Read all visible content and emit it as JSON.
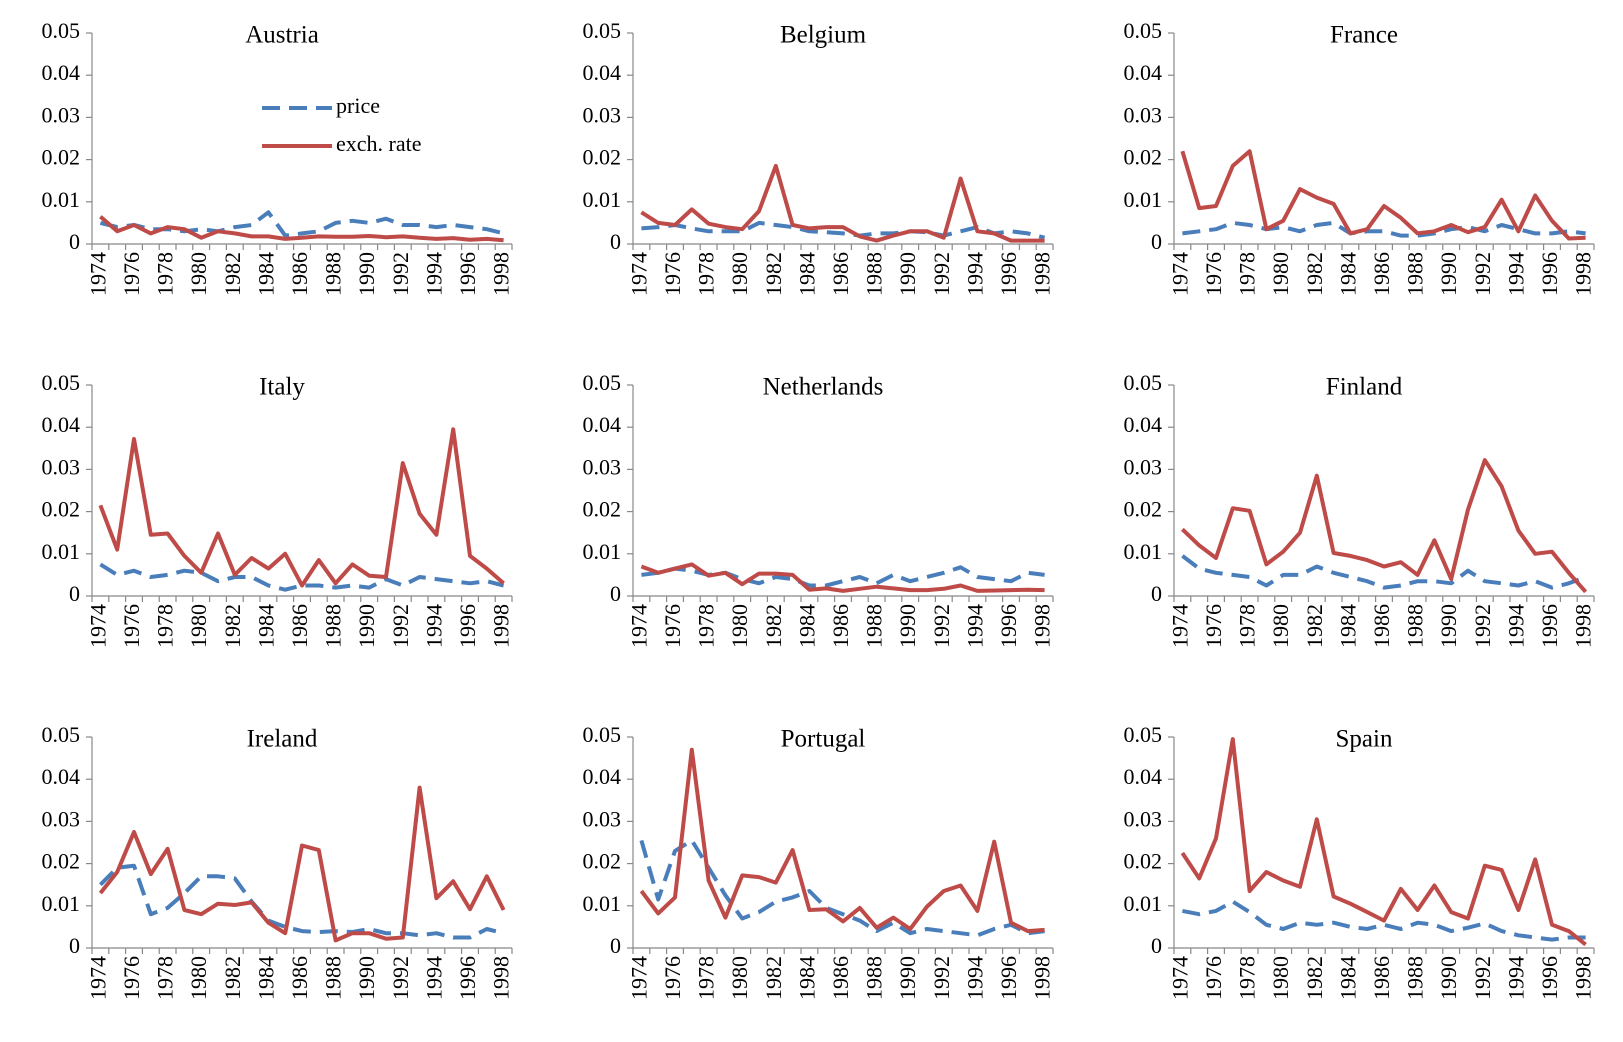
{
  "chart_data": [
    {
      "type": "line",
      "title": "Austria",
      "legend": "upper-center",
      "categories": [
        "1974",
        null,
        "1976",
        null,
        "1978",
        null,
        "1980",
        null,
        "1982",
        null,
        "1984",
        null,
        "1986",
        null,
        "1988",
        null,
        "1990",
        null,
        "1992",
        null,
        "1994",
        null,
        "1996",
        null,
        "1998"
      ],
      "ylim": [
        0,
        0.05
      ],
      "yticks": [
        0,
        0.01,
        0.02,
        0.03,
        0.04,
        0.05
      ],
      "series": [
        {
          "name": "price",
          "color": "#4a7ebb",
          "dash": "dashed",
          "values": [
            0.005,
            0.004,
            0.0045,
            0.0035,
            0.0035,
            0.003,
            0.0035,
            0.003,
            0.004,
            0.0045,
            0.0075,
            0.002,
            0.0025,
            0.003,
            0.005,
            0.0055,
            0.005,
            0.006,
            0.0045,
            0.0045,
            0.004,
            0.0045,
            0.004,
            0.0035,
            0.0025
          ]
        },
        {
          "name": "exch. rate",
          "color": "#be4b48",
          "dash": "solid",
          "values": [
            0.0065,
            0.003,
            0.0045,
            0.0025,
            0.004,
            0.0035,
            0.0015,
            0.003,
            0.0025,
            0.0018,
            0.0018,
            0.0012,
            0.0015,
            0.0018,
            0.0017,
            0.0017,
            0.0019,
            0.0016,
            0.0018,
            0.0015,
            0.0012,
            0.0014,
            0.001,
            0.0012,
            0.0009
          ]
        }
      ]
    },
    {
      "type": "line",
      "title": "Belgium",
      "categories": [
        "1974",
        null,
        "1976",
        null,
        "1978",
        null,
        "1980",
        null,
        "1982",
        null,
        "1984",
        null,
        "1986",
        null,
        "1988",
        null,
        "1990",
        null,
        "1992",
        null,
        "1994",
        null,
        "1996",
        null,
        "1998"
      ],
      "ylim": [
        0,
        0.05
      ],
      "yticks": [
        0,
        0.01,
        0.02,
        0.03,
        0.04,
        0.05
      ],
      "series": [
        {
          "name": "price",
          "color": "#4a7ebb",
          "dash": "dashed",
          "values": [
            0.0037,
            0.004,
            0.0045,
            0.0037,
            0.003,
            0.003,
            0.003,
            0.005,
            0.0045,
            0.004,
            0.003,
            0.0028,
            0.0025,
            0.002,
            0.0025,
            0.0025,
            0.003,
            0.0028,
            0.002,
            0.003,
            0.004,
            0.0025,
            0.003,
            0.0025,
            0.0015
          ]
        },
        {
          "name": "exch. rate",
          "color": "#be4b48",
          "dash": "solid",
          "values": [
            0.0075,
            0.005,
            0.0045,
            0.0082,
            0.0048,
            0.004,
            0.0035,
            0.0078,
            0.0185,
            0.0045,
            0.0037,
            0.004,
            0.004,
            0.0018,
            0.0008,
            0.002,
            0.003,
            0.003,
            0.0015,
            0.0155,
            0.003,
            0.0025,
            0.0008,
            0.0008,
            0.0008
          ]
        }
      ]
    },
    {
      "type": "line",
      "title": "France",
      "categories": [
        "1974",
        null,
        "1976",
        null,
        "1978",
        null,
        "1980",
        null,
        "1982",
        null,
        "1984",
        null,
        "1986",
        null,
        "1988",
        null,
        "1990",
        null,
        "1992",
        null,
        "1994",
        null,
        "1996",
        null,
        "1998"
      ],
      "ylim": [
        0,
        0.05
      ],
      "yticks": [
        0,
        0.01,
        0.02,
        0.03,
        0.04,
        0.05
      ],
      "series": [
        {
          "name": "price",
          "color": "#4a7ebb",
          "dash": "dashed",
          "values": [
            0.0025,
            0.003,
            0.0035,
            0.005,
            0.0045,
            0.0035,
            0.004,
            0.003,
            0.0045,
            0.005,
            0.0025,
            0.003,
            0.003,
            0.002,
            0.002,
            0.0025,
            0.0035,
            0.004,
            0.003,
            0.0045,
            0.0035,
            0.0025,
            0.0025,
            0.003,
            0.0025
          ]
        },
        {
          "name": "exch. rate",
          "color": "#be4b48",
          "dash": "solid",
          "values": [
            0.022,
            0.0085,
            0.009,
            0.0185,
            0.022,
            0.0035,
            0.0055,
            0.013,
            0.011,
            0.0095,
            0.0025,
            0.0035,
            0.009,
            0.0062,
            0.0025,
            0.003,
            0.0045,
            0.0028,
            0.004,
            0.0105,
            0.003,
            0.0115,
            0.0055,
            0.0013,
            0.0015
          ]
        }
      ]
    },
    {
      "type": "line",
      "title": "Italy",
      "categories": [
        "1974",
        null,
        "1976",
        null,
        "1978",
        null,
        "1980",
        null,
        "1982",
        null,
        "1984",
        null,
        "1986",
        null,
        "1988",
        null,
        "1990",
        null,
        "1992",
        null,
        "1994",
        null,
        "1996",
        null,
        "1998"
      ],
      "ylim": [
        0,
        0.05
      ],
      "yticks": [
        0,
        0.01,
        0.02,
        0.03,
        0.04,
        0.05
      ],
      "series": [
        {
          "name": "price",
          "color": "#4a7ebb",
          "dash": "dashed",
          "values": [
            0.0075,
            0.005,
            0.006,
            0.0045,
            0.005,
            0.006,
            0.0055,
            0.0035,
            0.0045,
            0.0045,
            0.0025,
            0.0015,
            0.0025,
            0.0025,
            0.002,
            0.0025,
            0.002,
            0.004,
            0.0025,
            0.0045,
            0.004,
            0.0035,
            0.003,
            0.0035,
            0.0025
          ]
        },
        {
          "name": "exch. rate",
          "color": "#be4b48",
          "dash": "solid",
          "values": [
            0.0215,
            0.011,
            0.0372,
            0.0145,
            0.0148,
            0.0095,
            0.0055,
            0.0148,
            0.005,
            0.009,
            0.0065,
            0.01,
            0.0025,
            0.0085,
            0.003,
            0.0075,
            0.0048,
            0.0045,
            0.0315,
            0.0195,
            0.0145,
            0.0395,
            0.0095,
            0.0065,
            0.003
          ]
        }
      ]
    },
    {
      "type": "line",
      "title": "Netherlands",
      "categories": [
        "1974",
        null,
        "1976",
        null,
        "1978",
        null,
        "1980",
        null,
        "1982",
        null,
        "1984",
        null,
        "1986",
        null,
        "1988",
        null,
        "1990",
        null,
        "1992",
        null,
        "1994",
        null,
        "1996",
        null,
        "1998"
      ],
      "ylim": [
        0,
        0.05
      ],
      "yticks": [
        0,
        0.01,
        0.02,
        0.03,
        0.04,
        0.05
      ],
      "series": [
        {
          "name": "price",
          "color": "#4a7ebb",
          "dash": "dashed",
          "values": [
            0.005,
            0.0055,
            0.0065,
            0.006,
            0.005,
            0.0055,
            0.004,
            0.003,
            0.0045,
            0.004,
            0.0025,
            0.0025,
            0.0035,
            0.0045,
            0.003,
            0.005,
            0.0035,
            0.0045,
            0.0055,
            0.0068,
            0.0045,
            0.004,
            0.0035,
            0.0055,
            0.005
          ]
        },
        {
          "name": "exch. rate",
          "color": "#be4b48",
          "dash": "solid",
          "values": [
            0.007,
            0.0055,
            0.0065,
            0.0075,
            0.0048,
            0.0055,
            0.0028,
            0.0053,
            0.0053,
            0.005,
            0.0015,
            0.0018,
            0.0012,
            0.0017,
            0.0022,
            0.0018,
            0.0014,
            0.0014,
            0.0017,
            0.0025,
            0.0012,
            0.0013,
            0.0014,
            0.0015,
            0.0014
          ]
        }
      ]
    },
    {
      "type": "line",
      "title": "Finland",
      "categories": [
        "1974",
        null,
        "1976",
        null,
        "1978",
        null,
        "1980",
        null,
        "1982",
        null,
        "1984",
        null,
        "1986",
        null,
        "1988",
        null,
        "1990",
        null,
        "1992",
        null,
        "1994",
        null,
        "1996",
        null,
        "1998"
      ],
      "ylim": [
        0,
        0.05
      ],
      "yticks": [
        0,
        0.01,
        0.02,
        0.03,
        0.04,
        0.05
      ],
      "series": [
        {
          "name": "price",
          "color": "#4a7ebb",
          "dash": "dashed",
          "values": [
            0.0095,
            0.0065,
            0.0055,
            0.005,
            0.0045,
            0.0025,
            0.005,
            0.005,
            0.007,
            0.0055,
            0.0045,
            0.0035,
            0.002,
            0.0025,
            0.0035,
            0.0035,
            0.003,
            0.006,
            0.0035,
            0.003,
            0.0025,
            0.0035,
            0.002,
            0.003,
            0.0045
          ]
        },
        {
          "name": "exch. rate",
          "color": "#be4b48",
          "dash": "solid",
          "values": [
            0.0158,
            0.012,
            0.009,
            0.0208,
            0.0202,
            0.0075,
            0.0105,
            0.015,
            0.0285,
            0.0102,
            0.0095,
            0.0085,
            0.007,
            0.008,
            0.005,
            0.0132,
            0.004,
            0.0205,
            0.0322,
            0.026,
            0.0155,
            0.01,
            0.0105,
            0.0055,
            0.001
          ]
        }
      ]
    },
    {
      "type": "line",
      "title": "Ireland",
      "categories": [
        "1974",
        null,
        "1976",
        null,
        "1978",
        null,
        "1980",
        null,
        "1982",
        null,
        "1984",
        null,
        "1986",
        null,
        "1988",
        null,
        "1990",
        null,
        "1992",
        null,
        "1994",
        null,
        "1996",
        null,
        "1998"
      ],
      "ylim": [
        0,
        0.05
      ],
      "yticks": [
        0,
        0.01,
        0.02,
        0.03,
        0.04,
        0.05
      ],
      "series": [
        {
          "name": "price",
          "color": "#4a7ebb",
          "dash": "dashed",
          "values": [
            0.015,
            0.019,
            0.0195,
            0.008,
            0.0095,
            0.013,
            0.017,
            0.017,
            0.0165,
            0.011,
            0.0065,
            0.005,
            0.004,
            0.0038,
            0.004,
            0.0038,
            0.0045,
            0.0035,
            0.0035,
            0.003,
            0.0035,
            0.0025,
            0.0025,
            0.0045,
            0.0035
          ]
        },
        {
          "name": "exch. rate",
          "color": "#be4b48",
          "dash": "solid",
          "values": [
            0.013,
            0.018,
            0.0275,
            0.0175,
            0.0235,
            0.009,
            0.008,
            0.0105,
            0.0102,
            0.0108,
            0.006,
            0.0035,
            0.0243,
            0.0232,
            0.0018,
            0.0035,
            0.0035,
            0.0022,
            0.0025,
            0.038,
            0.0118,
            0.0158,
            0.0092,
            0.017,
            0.009
          ]
        }
      ]
    },
    {
      "type": "line",
      "title": "Portugal",
      "categories": [
        "1974",
        null,
        "1976",
        null,
        "1978",
        null,
        "1980",
        null,
        "1982",
        null,
        "1984",
        null,
        "1986",
        null,
        "1988",
        null,
        "1990",
        null,
        "1992",
        null,
        "1994",
        null,
        "1996",
        null,
        "1998"
      ],
      "ylim": [
        0,
        0.05
      ],
      "yticks": [
        0,
        0.01,
        0.02,
        0.03,
        0.04,
        0.05
      ],
      "series": [
        {
          "name": "price",
          "color": "#4a7ebb",
          "dash": "dashed",
          "values": [
            0.0255,
            0.0115,
            0.023,
            0.0255,
            0.019,
            0.0125,
            0.007,
            0.0085,
            0.011,
            0.012,
            0.0135,
            0.0095,
            0.008,
            0.0065,
            0.004,
            0.006,
            0.0035,
            0.0045,
            0.004,
            0.0035,
            0.003,
            0.0045,
            0.0055,
            0.0035,
            0.004
          ]
        },
        {
          "name": "exch. rate",
          "color": "#be4b48",
          "dash": "solid",
          "values": [
            0.0135,
            0.0082,
            0.012,
            0.047,
            0.016,
            0.0072,
            0.0172,
            0.0168,
            0.0155,
            0.0232,
            0.009,
            0.0092,
            0.0063,
            0.0095,
            0.0048,
            0.0072,
            0.0045,
            0.0098,
            0.0135,
            0.0148,
            0.0088,
            0.0252,
            0.006,
            0.004,
            0.0043
          ]
        }
      ]
    },
    {
      "type": "line",
      "title": "Spain",
      "categories": [
        "1974",
        null,
        "1976",
        null,
        "1978",
        null,
        "1980",
        null,
        "1982",
        null,
        "1984",
        null,
        "1986",
        null,
        "1988",
        null,
        "1990",
        null,
        "1992",
        null,
        "1994",
        null,
        "1996",
        null,
        "1998"
      ],
      "ylim": [
        0,
        0.05
      ],
      "yticks": [
        0,
        0.01,
        0.02,
        0.03,
        0.04,
        0.05
      ],
      "series": [
        {
          "name": "price",
          "color": "#4a7ebb",
          "dash": "dashed",
          "values": [
            0.0088,
            0.008,
            0.0088,
            0.011,
            0.0085,
            0.0055,
            0.0045,
            0.006,
            0.0055,
            0.006,
            0.005,
            0.0045,
            0.0055,
            0.0045,
            0.006,
            0.0055,
            0.004,
            0.0048,
            0.0058,
            0.004,
            0.003,
            0.0025,
            0.002,
            0.0025,
            0.0025
          ]
        },
        {
          "name": "exch. rate",
          "color": "#be4b48",
          "dash": "solid",
          "values": [
            0.0225,
            0.0165,
            0.026,
            0.0495,
            0.0135,
            0.018,
            0.016,
            0.0145,
            0.0305,
            0.0122,
            0.0105,
            0.0085,
            0.0065,
            0.014,
            0.009,
            0.0148,
            0.0085,
            0.007,
            0.0195,
            0.0185,
            0.009,
            0.021,
            0.0055,
            0.004,
            0.0008
          ]
        }
      ]
    }
  ]
}
